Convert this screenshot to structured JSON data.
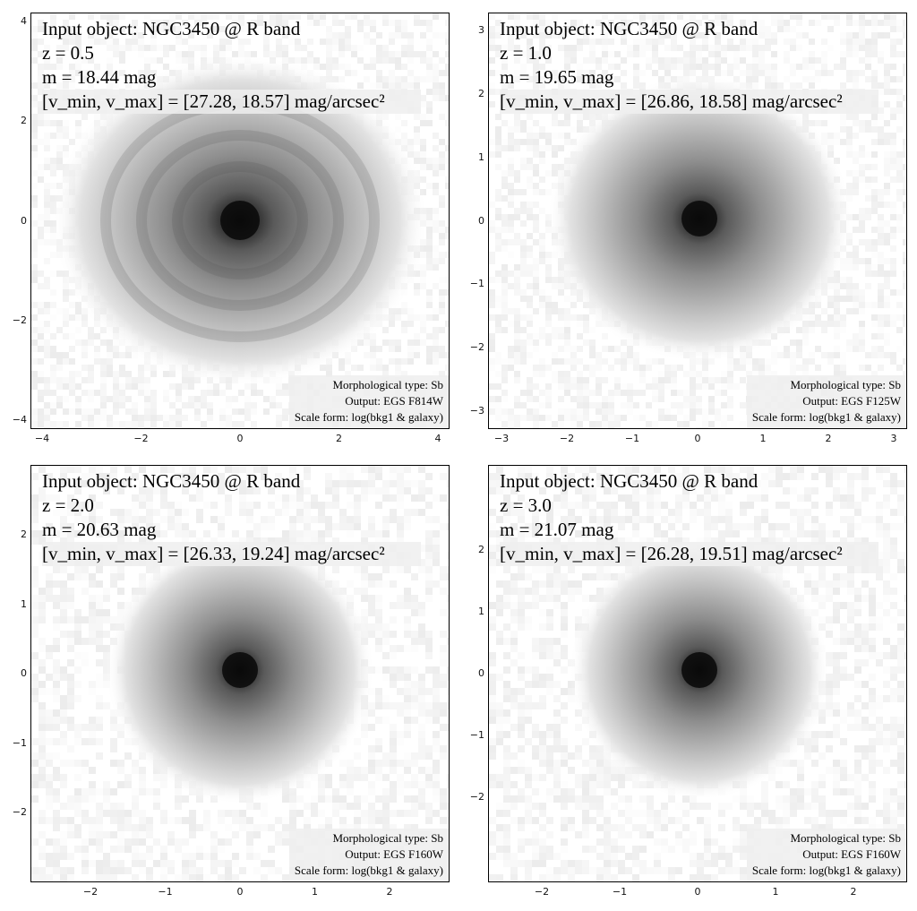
{
  "panels": [
    {
      "id": "p1",
      "title": "Input object: NGC3450 @ R band",
      "z_label": "z = 0.5",
      "m_label": "m = 18.44 mag",
      "range_label": "[v_min, v_max] = [27.28, 18.57] mag/arcsec²",
      "morph": "Morphological type: Sb",
      "output": "Output: EGS F814W",
      "scale": "Scale form: log(bkg1 & galaxy)",
      "x_ticks": [
        "−4",
        "−2",
        "0",
        "2",
        "4"
      ],
      "y_ticks": [
        "4",
        "2",
        "0",
        "−2",
        "−4"
      ]
    },
    {
      "id": "p2",
      "title": "Input object: NGC3450 @ R band",
      "z_label": "z = 1.0",
      "m_label": "m = 19.65 mag",
      "range_label": "[v_min, v_max] = [26.86, 18.58] mag/arcsec²",
      "morph": "Morphological type: Sb",
      "output": "Output: EGS F125W",
      "scale": "Scale form: log(bkg1 & galaxy)",
      "x_ticks": [
        "−3",
        "−2",
        "−1",
        "0",
        "1",
        "2",
        "3"
      ],
      "y_ticks": [
        "3",
        "2",
        "1",
        "0",
        "−1",
        "−2",
        "−3"
      ]
    },
    {
      "id": "p3",
      "title": "Input object: NGC3450 @ R band",
      "z_label": "z = 2.0",
      "m_label": "m = 20.63 mag",
      "range_label": "[v_min, v_max] = [26.33, 19.24] mag/arcsec²",
      "morph": "Morphological type: Sb",
      "output": "Output: EGS F160W",
      "scale": "Scale form: log(bkg1 & galaxy)",
      "x_ticks": [
        "−2",
        "−1",
        "0",
        "1",
        "2"
      ],
      "y_ticks": [
        "2",
        "1",
        "0",
        "−1",
        "−2"
      ]
    },
    {
      "id": "p4",
      "title": "Input object: NGC3450 @ R band",
      "z_label": "z = 3.0",
      "m_label": "m = 21.07 mag",
      "range_label": "[v_min, v_max] = [26.28, 19.51] mag/arcsec²",
      "morph": "Morphological type: Sb",
      "output": "Output: EGS F160W",
      "scale": "Scale form: log(bkg1 & galaxy)",
      "x_ticks": [
        "−2",
        "−1",
        "0",
        "1",
        "2"
      ],
      "y_ticks": [
        "2",
        "1",
        "0",
        "−1",
        "−2"
      ]
    }
  ]
}
